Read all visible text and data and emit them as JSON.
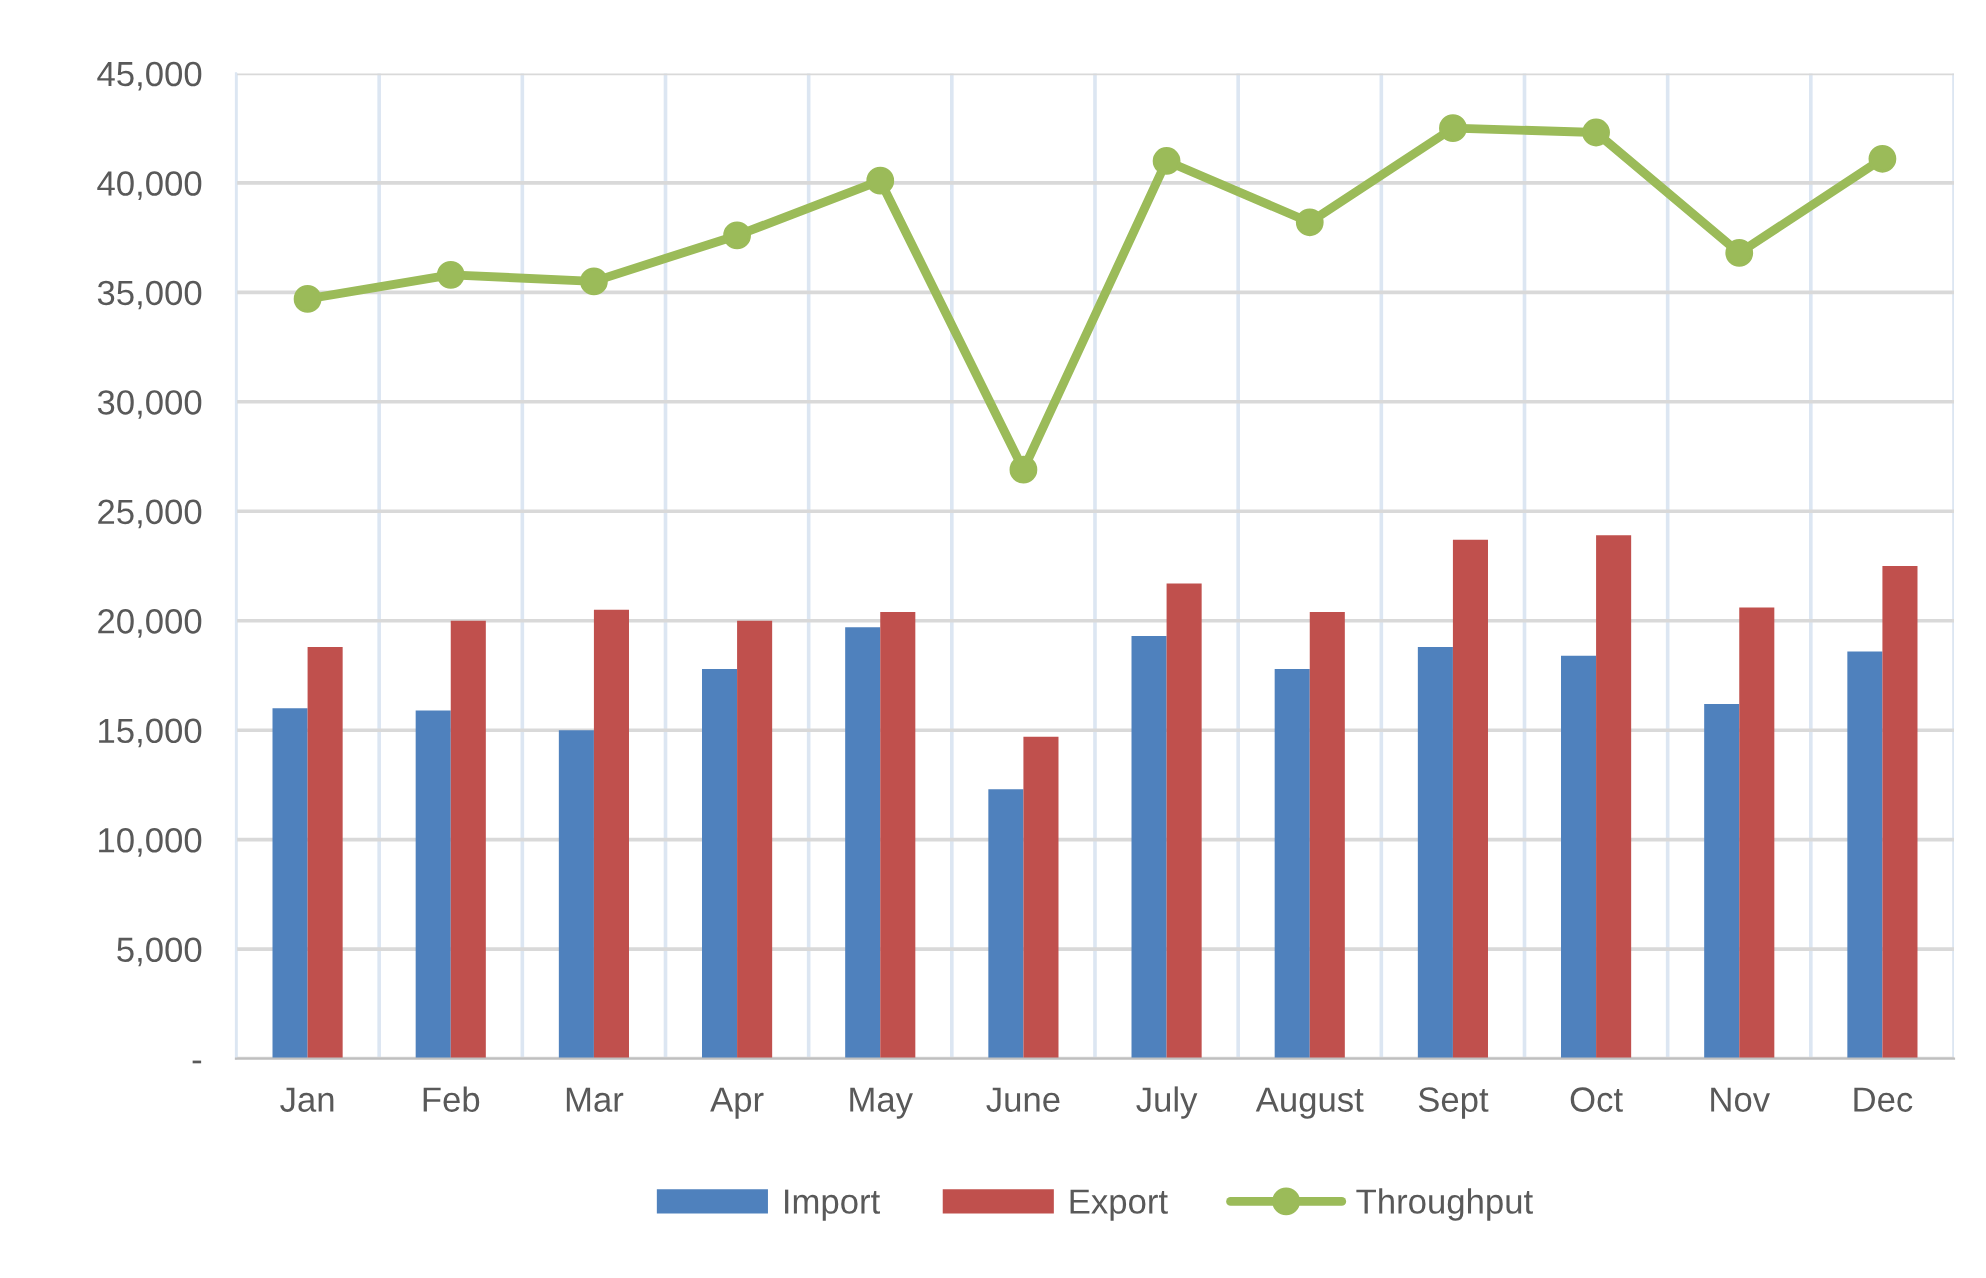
{
  "chart_data": {
    "type": "bar",
    "categories": [
      "Jan",
      "Feb",
      "Mar",
      "Apr",
      "May",
      "June",
      "July",
      "August",
      "Sept",
      "Oct",
      "Nov",
      "Dec"
    ],
    "series": [
      {
        "name": "Import",
        "color": "#4f81bd",
        "values": [
          16000,
          15900,
          15000,
          17800,
          19700,
          12300,
          19300,
          17800,
          18800,
          18400,
          16200,
          18600
        ]
      },
      {
        "name": "Export",
        "color": "#c0504d",
        "values": [
          18800,
          20000,
          20500,
          20000,
          20400,
          14700,
          21700,
          20400,
          23700,
          23900,
          20600,
          22500
        ]
      },
      {
        "name": "Throughput",
        "type": "line",
        "color": "#9bbb59",
        "marker": "circle",
        "line_style": "solid",
        "values": [
          34700,
          35800,
          35500,
          37600,
          40100,
          26900,
          41000,
          38200,
          42500,
          42300,
          36800,
          41100
        ]
      }
    ],
    "ylim": [
      0,
      45000
    ],
    "yticks": [
      {
        "value": 0,
        "label": "-"
      },
      {
        "value": 5000,
        "label": "5,000"
      },
      {
        "value": 10000,
        "label": "10,000"
      },
      {
        "value": 15000,
        "label": "15,000"
      },
      {
        "value": 20000,
        "label": "20,000"
      },
      {
        "value": 25000,
        "label": "25,000"
      },
      {
        "value": 30000,
        "label": "30,000"
      },
      {
        "value": 35000,
        "label": "35,000"
      },
      {
        "value": 40000,
        "label": "40,000"
      },
      {
        "value": 45000,
        "label": "45,000"
      }
    ],
    "grid": true,
    "legend": "bottom"
  }
}
